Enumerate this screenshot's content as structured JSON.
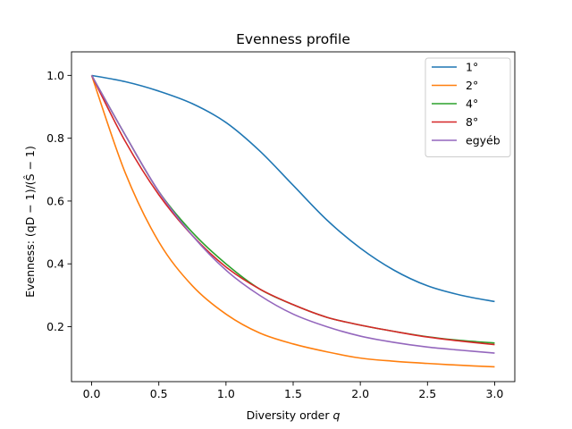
{
  "chart_data": {
    "type": "line",
    "title": "Evenness profile",
    "xlabel": "Diversity order q",
    "ylabel": "Evenness: (qD − 1)/(Ŝ − 1)",
    "xlim": [
      -0.15,
      3.15
    ],
    "ylim": [
      0.025,
      1.075
    ],
    "xticks": [
      0.0,
      0.5,
      1.0,
      1.5,
      2.0,
      2.5,
      3.0
    ],
    "xtick_labels": [
      "0.0",
      "0.5",
      "1.0",
      "1.5",
      "2.0",
      "2.5",
      "3.0"
    ],
    "yticks": [
      0.2,
      0.4,
      0.6,
      0.8,
      1.0
    ],
    "ytick_labels": [
      "0.2",
      "0.4",
      "0.6",
      "0.8",
      "1.0"
    ],
    "grid": false,
    "legend_position": "top-right",
    "x": [
      0.0,
      0.25,
      0.5,
      0.75,
      1.0,
      1.25,
      1.5,
      1.75,
      2.0,
      2.25,
      2.5,
      2.75,
      3.0
    ],
    "series": [
      {
        "name": "1°",
        "color": "#1f77b4",
        "values": [
          1.0,
          0.98,
          0.95,
          0.91,
          0.85,
          0.76,
          0.65,
          0.54,
          0.45,
          0.38,
          0.33,
          0.3,
          0.28
        ]
      },
      {
        "name": "2°",
        "color": "#ff7f0e",
        "values": [
          1.0,
          0.69,
          0.47,
          0.33,
          0.24,
          0.18,
          0.145,
          0.12,
          0.1,
          0.09,
          0.083,
          0.077,
          0.072
        ]
      },
      {
        "name": "4°",
        "color": "#2ca02c",
        "values": [
          1.0,
          0.81,
          0.63,
          0.5,
          0.4,
          0.32,
          0.27,
          0.23,
          0.205,
          0.185,
          0.168,
          0.156,
          0.148
        ]
      },
      {
        "name": "8°",
        "color": "#d62728",
        "values": [
          1.0,
          0.79,
          0.62,
          0.49,
          0.39,
          0.32,
          0.27,
          0.23,
          0.205,
          0.185,
          0.167,
          0.154,
          0.143
        ]
      },
      {
        "name": "egyéb",
        "color": "#9467bd",
        "values": [
          1.0,
          0.81,
          0.63,
          0.49,
          0.38,
          0.3,
          0.24,
          0.2,
          0.17,
          0.15,
          0.135,
          0.125,
          0.116
        ]
      }
    ]
  }
}
